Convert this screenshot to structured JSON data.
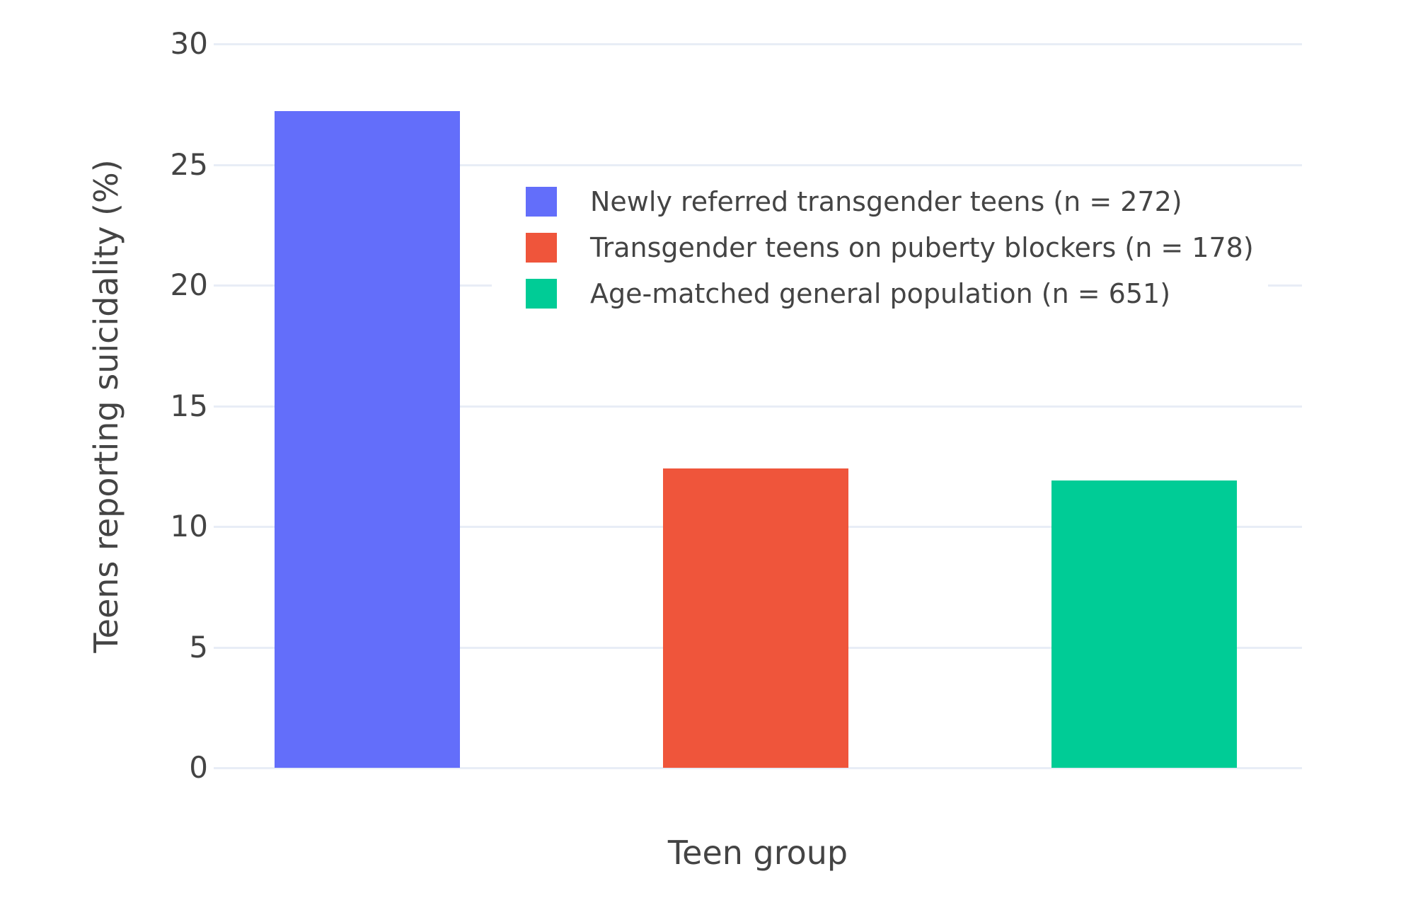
{
  "chart_data": {
    "type": "bar",
    "title": "",
    "xlabel": "Teen group",
    "ylabel": "Teens reporting suicidality (%)",
    "ylim": [
      0,
      30
    ],
    "yticks": [
      0,
      5,
      10,
      15,
      20,
      25,
      30
    ],
    "grid": true,
    "legend_position": "inside-top-right",
    "bars": [
      {
        "label": "Newly referred transgender teens (n = 272)",
        "value": 27.2,
        "color": "#636EFA"
      },
      {
        "label": "Transgender teens on puberty blockers (n = 178)",
        "value": 12.4,
        "color": "#EF553B"
      },
      {
        "label": "Age-matched general population (n = 651)",
        "value": 11.9,
        "color": "#00CC96"
      }
    ]
  },
  "styles": {
    "text_color": "#444444",
    "grid_color": "#E8EDF6",
    "background_color": "#FFFFFF"
  }
}
